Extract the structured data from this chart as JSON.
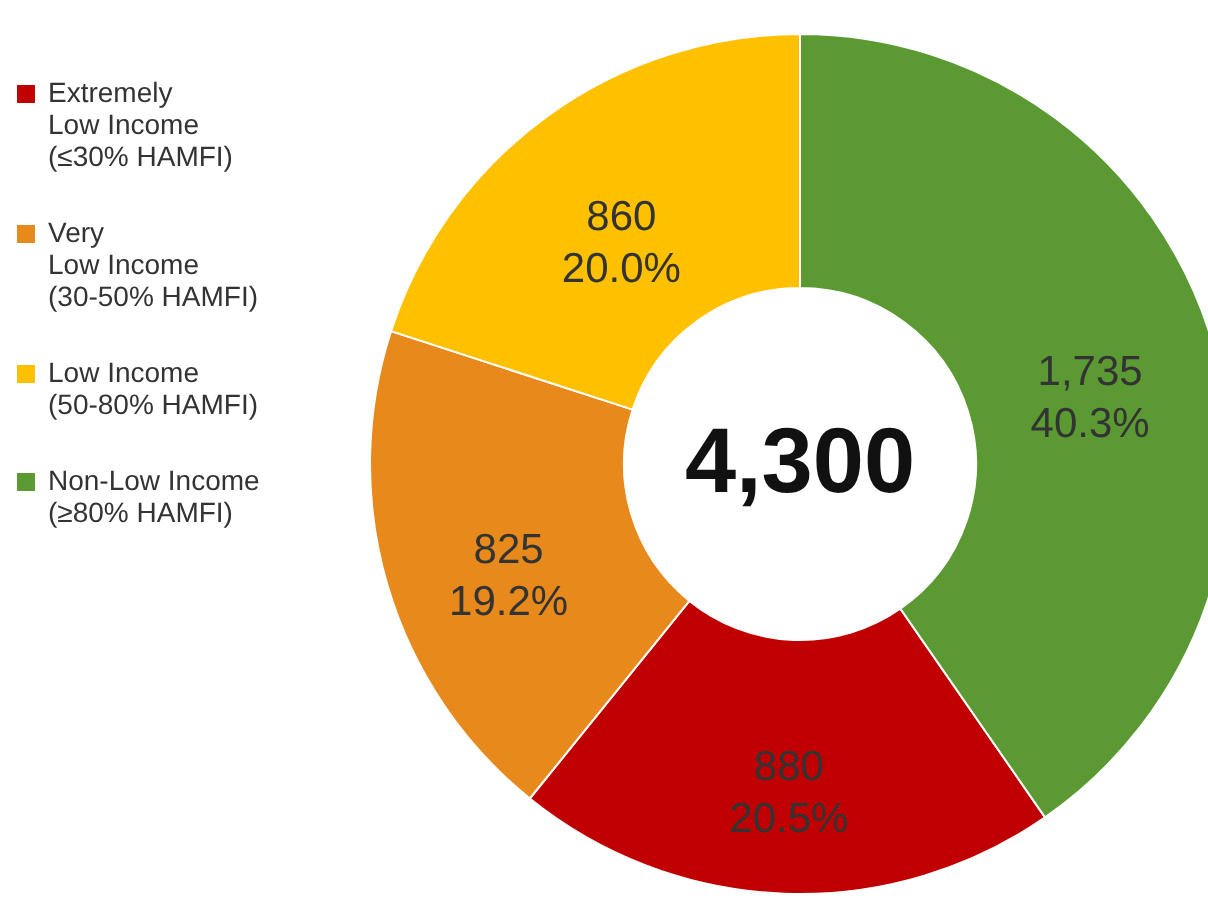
{
  "chart_data": {
    "type": "donut",
    "categories": [
      "Extremely\nLow Income\n(≤30% HAMFI)",
      "Very\nLow Income\n(30-50% HAMFI)",
      "Low Income\n(50-80% HAMFI)",
      "Non-Low Income\n(≥80% HAMFI)"
    ],
    "values": [
      880,
      825,
      860,
      1735
    ],
    "colors": [
      "#c00000",
      "#e8891c",
      "#ffc000",
      "#5b9a32"
    ],
    "value_labels": [
      "880\n20.5%",
      "825\n19.2%",
      "860\n20.0%",
      "1,735\n40.3%"
    ],
    "annotations": [
      "4,300"
    ],
    "legend": "left"
  }
}
